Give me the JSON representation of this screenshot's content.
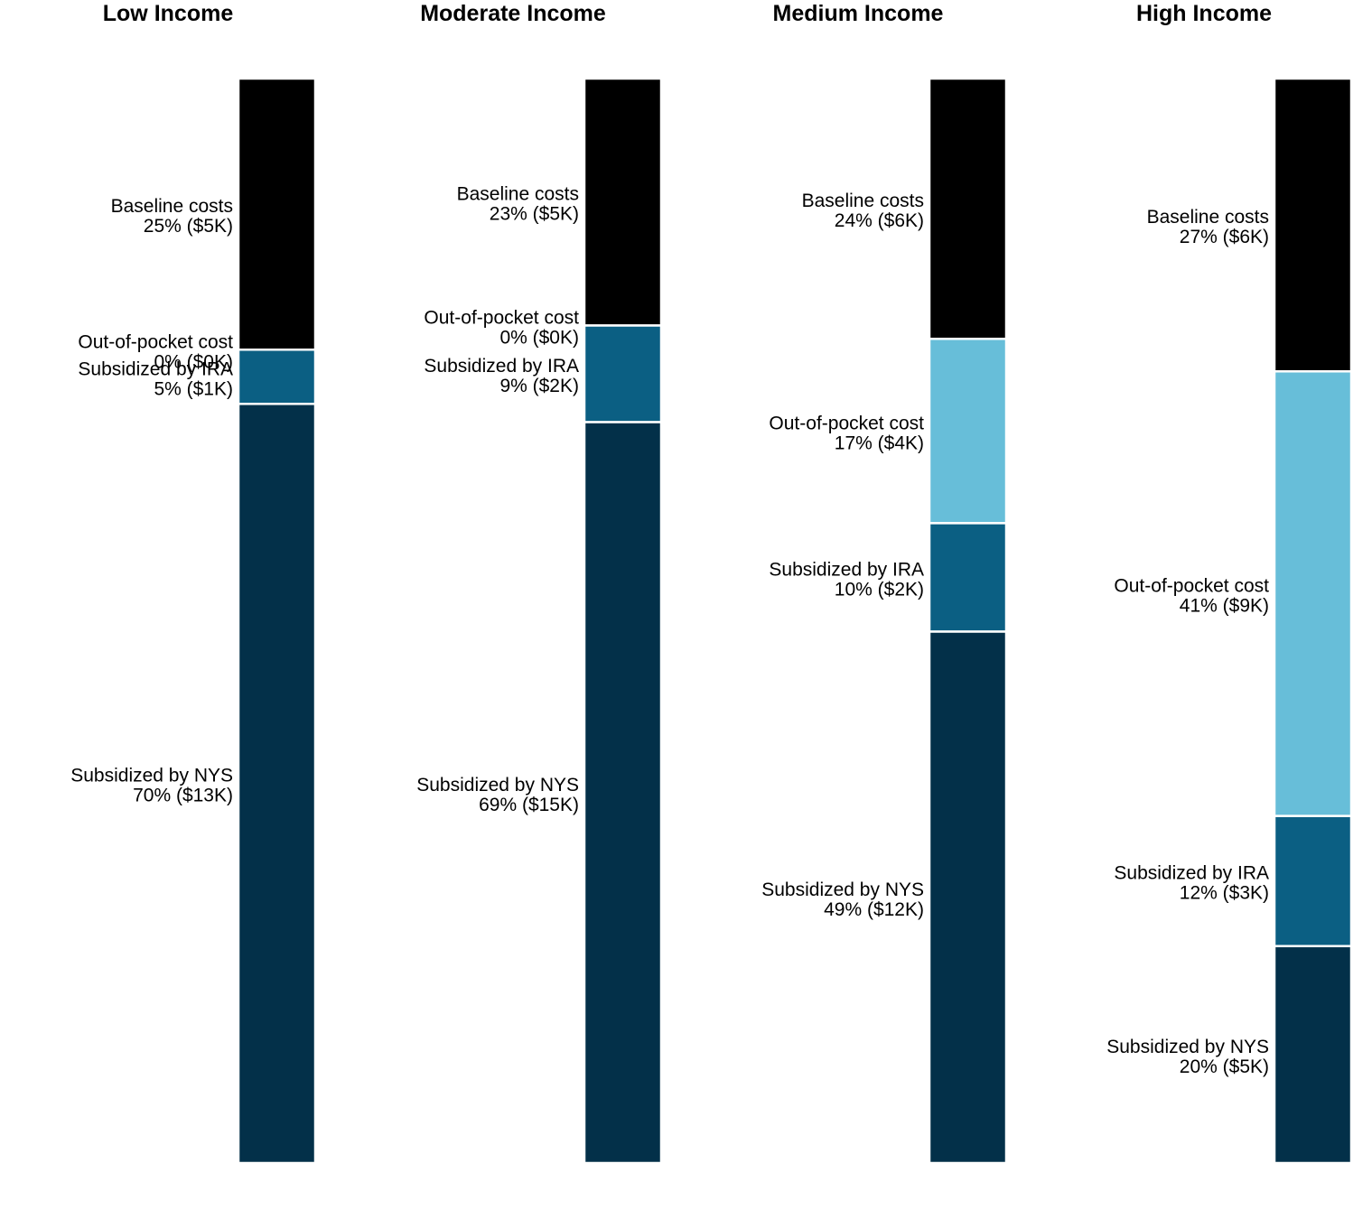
{
  "chart_data": {
    "type": "bar",
    "stacked": true,
    "orientation": "vertical",
    "grid": false,
    "legend": "none",
    "panels": [
      {
        "title": "Low Income",
        "segments": [
          {
            "name": "Baseline costs",
            "percent": 25,
            "label": "25% ($5K)",
            "color": "#000000"
          },
          {
            "name": "Out-of-pocket cost",
            "percent": 0,
            "label": "0% ($0K)",
            "color": "#67BED9"
          },
          {
            "name": "Subsidized by IRA",
            "percent": 5,
            "label": "5% ($1K)",
            "color": "#0B5F83"
          },
          {
            "name": "Subsidized by NYS",
            "percent": 70,
            "label": "70% ($13K)",
            "color": "#033049"
          }
        ]
      },
      {
        "title": "Moderate Income",
        "segments": [
          {
            "name": "Baseline costs",
            "percent": 23,
            "label": "23% ($5K)",
            "color": "#000000"
          },
          {
            "name": "Out-of-pocket cost",
            "percent": 0,
            "label": "0% ($0K)",
            "color": "#67BED9"
          },
          {
            "name": "Subsidized by IRA",
            "percent": 9,
            "label": "9% ($2K)",
            "color": "#0B5F83"
          },
          {
            "name": "Subsidized by NYS",
            "percent": 69,
            "label": "69% ($15K)",
            "color": "#033049"
          }
        ]
      },
      {
        "title": "Medium Income",
        "segments": [
          {
            "name": "Baseline costs",
            "percent": 24,
            "label": "24% ($6K)",
            "color": "#000000"
          },
          {
            "name": "Out-of-pocket cost",
            "percent": 17,
            "label": "17% ($4K)",
            "color": "#67BED9"
          },
          {
            "name": "Subsidized by IRA",
            "percent": 10,
            "label": "10% ($2K)",
            "color": "#0B5F83"
          },
          {
            "name": "Subsidized by NYS",
            "percent": 49,
            "label": "49% ($12K)",
            "color": "#033049"
          }
        ]
      },
      {
        "title": "High Income",
        "segments": [
          {
            "name": "Baseline costs",
            "percent": 27,
            "label": "27% ($6K)",
            "color": "#000000"
          },
          {
            "name": "Out-of-pocket cost",
            "percent": 41,
            "label": "41% ($9K)",
            "color": "#67BED9"
          },
          {
            "name": "Subsidized by IRA",
            "percent": 12,
            "label": "12% ($3K)",
            "color": "#0B5F83"
          },
          {
            "name": "Subsidized by NYS",
            "percent": 20,
            "label": "20% ($5K)",
            "color": "#033049"
          }
        ]
      }
    ]
  }
}
